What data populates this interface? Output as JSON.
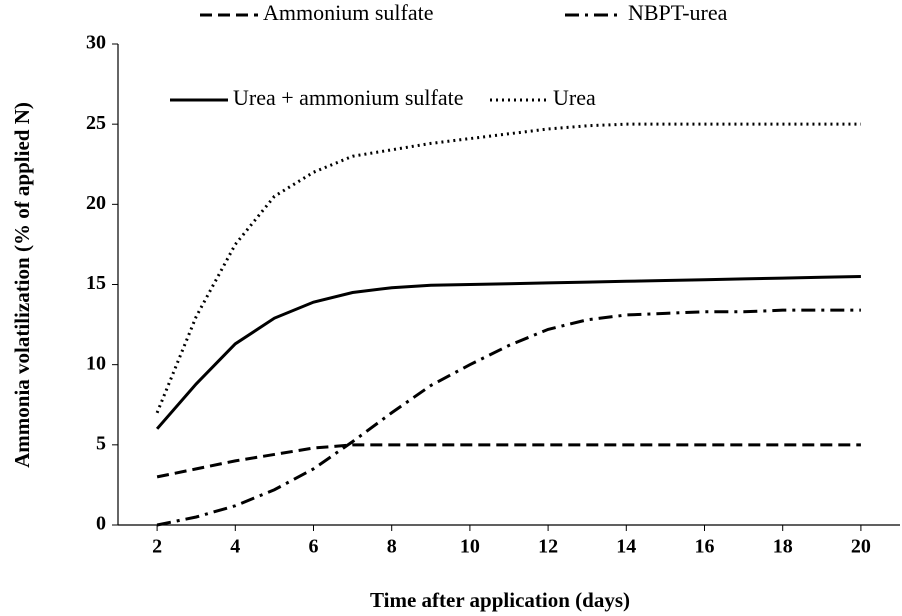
{
  "chart_data": {
    "type": "line",
    "xlabel": "Time after application (days)",
    "ylabel": "Ammonia volatilization (% of applied N)",
    "x": [
      2,
      3,
      4,
      5,
      6,
      7,
      8,
      9,
      10,
      11,
      12,
      13,
      14,
      15,
      16,
      17,
      18,
      19,
      20
    ],
    "series": [
      {
        "name": "Ammonium sulfate",
        "color": "#000000",
        "style": "dashed",
        "values": [
          3,
          3.5,
          4,
          4.4,
          4.8,
          5,
          5,
          5,
          5,
          5,
          5,
          5,
          5,
          5,
          5,
          5,
          5,
          5,
          5
        ]
      },
      {
        "name": "NBPT-urea",
        "color": "#000000",
        "style": "dashdot",
        "values": [
          0,
          0.5,
          1.2,
          2.2,
          3.5,
          5.2,
          7,
          8.7,
          10,
          11.2,
          12.2,
          12.8,
          13.1,
          13.2,
          13.3,
          13.3,
          13.4,
          13.4,
          13.4
        ]
      },
      {
        "name": "Urea + ammonium sulfate",
        "color": "#000000",
        "style": "solid",
        "values": [
          6,
          8.8,
          11.3,
          12.9,
          13.9,
          14.5,
          14.8,
          14.95,
          15,
          15.05,
          15.1,
          15.15,
          15.2,
          15.25,
          15.3,
          15.35,
          15.4,
          15.45,
          15.5
        ]
      },
      {
        "name": "Urea",
        "color": "#000000",
        "style": "dotted",
        "values": [
          7,
          13,
          17.5,
          20.5,
          22,
          23,
          23.4,
          23.8,
          24.1,
          24.4,
          24.7,
          24.9,
          25,
          25,
          25,
          25,
          25,
          25,
          25
        ]
      }
    ],
    "xlim": [
      1,
      21
    ],
    "xticks": [
      2,
      4,
      6,
      8,
      10,
      12,
      14,
      16,
      18,
      20
    ],
    "ylim": [
      0,
      30
    ],
    "yticks": [
      0,
      5,
      10,
      15,
      20,
      25,
      30
    ]
  }
}
